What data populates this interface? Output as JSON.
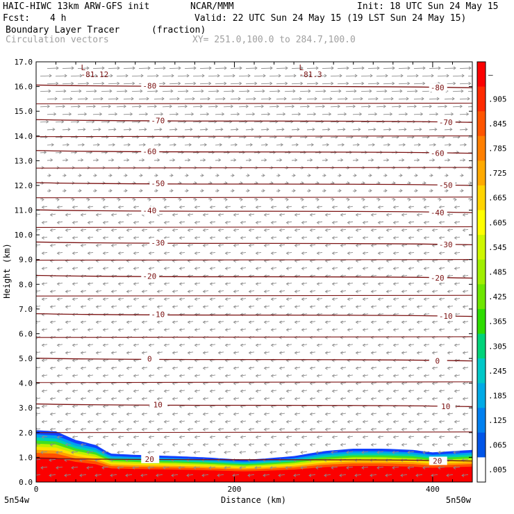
{
  "header": {
    "model": "HAIC-HIWC 13km ARW-GFS init",
    "org": "NCAR/MMM",
    "init": "Init: 18 UTC Sun 24 May 15",
    "fcst_label": "Fcst:",
    "fcst_value": "4 h",
    "valid": "Valid: 22 UTC Sun 24 May 15 (19 LST Sun 24 May 15)",
    "field1": "Boundary Layer Tracer",
    "field1_unit": "(fraction)",
    "field2": "Circulation vectors",
    "xy": "XY= 251.0,100.0 to 284.7,100.0"
  },
  "chart_data": {
    "type": "heatmap",
    "xlabel": "Distance (km)",
    "ylabel": "Height (km)",
    "xlim": [
      0,
      440
    ],
    "ylim": [
      0,
      17
    ],
    "x_ticks": [
      "0",
      "200",
      "400"
    ],
    "x_tick_values": [
      0,
      200,
      400
    ],
    "y_ticks": [
      "0.0",
      "1.0",
      "2.0",
      "3.0",
      "4.0",
      "5.0",
      "6.0",
      "7.0",
      "8.0",
      "9.0",
      "10.0",
      "11.0",
      "12.0",
      "13.0",
      "14.0",
      "15.0",
      "16.0",
      "17.0"
    ],
    "endpoint_left": "5n54w",
    "endpoint_right": "5n50w",
    "colorbar": {
      "labels": [
        "–",
        ".905",
        ".845",
        ".785",
        ".725",
        ".665",
        ".605",
        ".545",
        ".485",
        ".425",
        ".365",
        ".305",
        ".245",
        ".185",
        ".125",
        ".065",
        ".005"
      ],
      "colors": [
        "#fb0000",
        "#ff2a00",
        "#ff5500",
        "#ff7f00",
        "#ffaa00",
        "#ffd400",
        "#ffff00",
        "#cef700",
        "#a0ef00",
        "#6ee600",
        "#2edc00",
        "#00d37a",
        "#00c8c8",
        "#00aae6",
        "#0080f0",
        "#0055e8",
        "#ffffff"
      ]
    },
    "tracer_top": {
      "x": [
        0,
        20,
        40,
        60,
        75,
        100,
        140,
        170,
        190,
        210,
        230,
        260,
        290,
        320,
        350,
        380,
        400,
        420,
        440
      ],
      "top_km": [
        2.1,
        2.05,
        1.7,
        1.5,
        1.15,
        1.1,
        1.05,
        1.0,
        0.95,
        0.9,
        0.95,
        1.05,
        1.25,
        1.35,
        1.35,
        1.3,
        1.2,
        1.25,
        1.3
      ]
    },
    "temperature_contours": {
      "levels": [
        20,
        10,
        0,
        -10,
        -20,
        -30,
        -40,
        -50,
        -60,
        -70,
        -80
      ],
      "heights_km": [
        0.9,
        3.1,
        4.95,
        6.75,
        8.3,
        9.65,
        10.95,
        12.05,
        13.35,
        14.6,
        16.0
      ],
      "labels": [
        "20",
        "10",
        "0",
        "-10",
        "-20",
        "-30",
        "-40",
        "-50",
        "-60",
        "-70",
        "-80"
      ]
    },
    "lows": [
      {
        "x": 55,
        "label": "-81.12"
      },
      {
        "x": 275,
        "label": "-81.3"
      }
    ]
  }
}
